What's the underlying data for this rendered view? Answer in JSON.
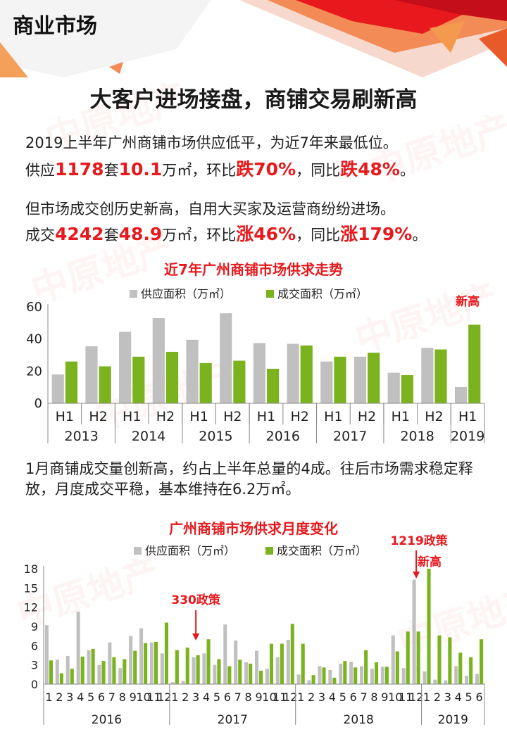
{
  "header": {
    "section_title": "商业市场",
    "headline": "大客户进场接盘，商铺交易刷新高"
  },
  "watermark": {
    "text": "中原地产"
  },
  "intro": {
    "line1": "2019上半年广州商铺市场供应低平，为近7年来最低位。",
    "line2": {
      "p1": "供应",
      "v1": "1178",
      "p2": "套",
      "v2": "10.1",
      "p3": "万㎡，环比",
      "v3": "跌70%",
      "p4": "，同比",
      "v4": "跌48%",
      "p5": "。"
    },
    "line3": "但市场成交创历史新高，自用大买家及运营商纷纷进场。",
    "line4": {
      "p1": "成交",
      "v1": "4242",
      "p2": "套",
      "v2": "48.9",
      "p3": "万㎡，环比",
      "v3": "涨46%",
      "p4": "，同比",
      "v4": "涨179%",
      "p5": "。"
    }
  },
  "mid_text": "1月商铺成交量创新高，约占上半年总量的4成。往后市场需求稳定释放，月度成交平稳，基本维持在6.2万㎡。",
  "colors": {
    "supply": "#c0c0c0",
    "deal": "#7ab31e",
    "accent": "#e8191d"
  },
  "chart_data": [
    {
      "type": "bar",
      "title": "近7年广州商铺市场供求走势",
      "categories": [
        "H1",
        "H2",
        "H1",
        "H2",
        "H1",
        "H2",
        "H1",
        "H2",
        "H1",
        "H2",
        "H1",
        "H2",
        "H1"
      ],
      "groups": [
        {
          "label": "2013",
          "count": 2
        },
        {
          "label": "2014",
          "count": 2
        },
        {
          "label": "2015",
          "count": 2
        },
        {
          "label": "2016",
          "count": 2
        },
        {
          "label": "2017",
          "count": 2
        },
        {
          "label": "2018",
          "count": 2
        },
        {
          "label": "2019",
          "count": 1
        }
      ],
      "series": [
        {
          "name": "供应面积（万㎡）",
          "values": [
            18,
            35.5,
            44.5,
            53,
            39.5,
            56,
            37.5,
            37,
            26,
            29,
            19,
            34.5,
            10.1
          ]
        },
        {
          "name": "成交面积（万㎡）",
          "values": [
            26,
            23,
            29,
            32,
            25,
            26.5,
            21.5,
            36,
            29,
            31.5,
            17.5,
            33.5,
            48.9
          ]
        }
      ],
      "ylim": [
        0,
        60
      ],
      "yticks": [
        0,
        20,
        40,
        60
      ],
      "annotations": [
        {
          "text": "新高",
          "index": 12
        }
      ]
    },
    {
      "type": "bar",
      "title": "广州商铺市场供求月度变化",
      "categories": [
        "1",
        "2",
        "3",
        "4",
        "5",
        "6",
        "7",
        "8",
        "9",
        "10",
        "11",
        "12",
        "1",
        "2",
        "3",
        "4",
        "5",
        "6",
        "7",
        "8",
        "9",
        "10",
        "11",
        "12",
        "1",
        "2",
        "3",
        "4",
        "5",
        "6",
        "7",
        "8",
        "9",
        "10",
        "11",
        "12",
        "1",
        "2",
        "3",
        "4",
        "5",
        "6"
      ],
      "groups": [
        {
          "label": "2016",
          "count": 12
        },
        {
          "label": "2017",
          "count": 12
        },
        {
          "label": "2018",
          "count": 12
        },
        {
          "label": "2019",
          "count": 6
        }
      ],
      "series": [
        {
          "name": "供应面积（万㎡）",
          "values": [
            9.2,
            3.8,
            4.4,
            11.3,
            5.3,
            3.0,
            6.5,
            2.5,
            7.5,
            8.7,
            6.5,
            4.8,
            0.3,
            0.5,
            4.2,
            4.8,
            3.0,
            9.3,
            6.8,
            3.4,
            5.2,
            2.4,
            4.2,
            6.9,
            1.5,
            0.6,
            2.8,
            2.2,
            3.2,
            3.5,
            2.8,
            2.4,
            2.7,
            7.6,
            2.5,
            16.3,
            2.0,
            0.7,
            0.6,
            2.8,
            1.3,
            1.6
          ]
        },
        {
          "name": "成交面积（万㎡）",
          "values": [
            3.7,
            1.7,
            2.4,
            4.3,
            5.5,
            3.6,
            4.2,
            3.9,
            5.2,
            6.4,
            6.6,
            9.6,
            5.3,
            5.7,
            4.5,
            7.0,
            3.9,
            2.8,
            3.8,
            3.2,
            2.1,
            6.3,
            6.3,
            9.4,
            6.3,
            1.4,
            2.6,
            1.0,
            3.6,
            2.6,
            5.3,
            3.4,
            2.7,
            5.1,
            8.2,
            8.2,
            18.0,
            7.6,
            7.3,
            4.9,
            4.2,
            7.0
          ]
        }
      ],
      "ylim": [
        0,
        18
      ],
      "yticks": [
        0,
        3,
        6,
        9,
        12,
        15,
        18
      ],
      "annotations": [
        {
          "text": "330政策",
          "index": 14
        },
        {
          "text": "1219政策",
          "index": 35
        },
        {
          "text": "新高",
          "index": 36
        }
      ]
    }
  ]
}
